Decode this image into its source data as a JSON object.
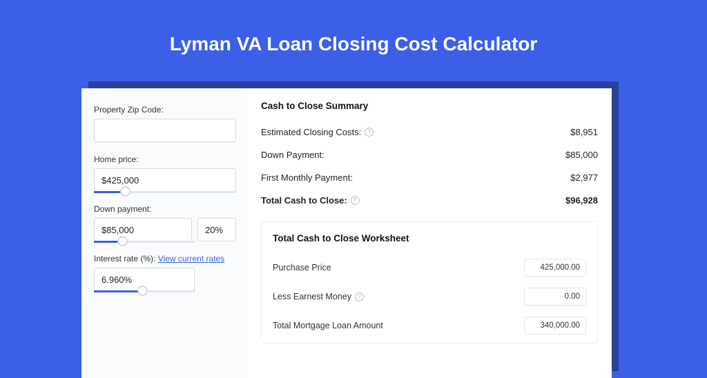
{
  "page": {
    "title": "Lyman VA Loan Closing Cost Calculator",
    "bg_color": "#3C5FE8",
    "shadow_color": "#2A3F9E"
  },
  "form": {
    "zip_label": "Property Zip Code:",
    "zip_value": "",
    "home_price_label": "Home price:",
    "home_price_value": "$425,000",
    "home_price_fill_pct": 22,
    "down_label": "Down payment:",
    "down_value": "$85,000",
    "down_pct": "20%",
    "down_fill_pct": 28,
    "rate_label": "Interest rate (%):",
    "rate_link": "View current rates",
    "rate_value": "6.960%",
    "rate_fill_pct": 48
  },
  "summary": {
    "title": "Cash to Close Summary",
    "rows": [
      {
        "label": "Estimated Closing Costs:",
        "help": true,
        "value": "$8,951",
        "bold": false
      },
      {
        "label": "Down Payment:",
        "help": false,
        "value": "$85,000",
        "bold": false
      },
      {
        "label": "First Monthly Payment:",
        "help": false,
        "value": "$2,977",
        "bold": false
      },
      {
        "label": "Total Cash to Close:",
        "help": true,
        "value": "$96,928",
        "bold": true
      }
    ]
  },
  "worksheet": {
    "title": "Total Cash to Close Worksheet",
    "rows": [
      {
        "label": "Purchase Price",
        "help": false,
        "value": "425,000.00"
      },
      {
        "label": "Less Earnest Money",
        "help": true,
        "value": "0.00"
      },
      {
        "label": "Total Mortgage Loan Amount",
        "help": false,
        "value": "340,000.00"
      }
    ]
  }
}
